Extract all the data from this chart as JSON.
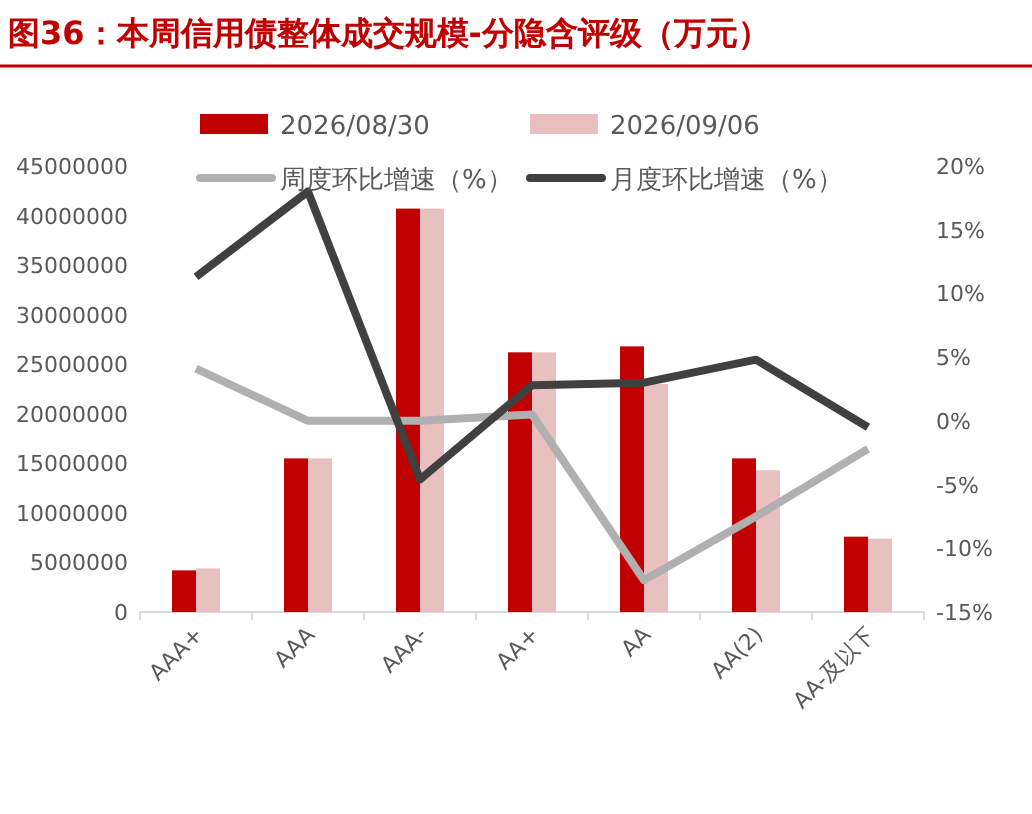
{
  "chart_data": {
    "type": "bar",
    "title": "图36：本周信用债整体成交规模-分隐含评级（万元）",
    "categories": [
      "AAA+",
      "AAA",
      "AAA-",
      "AA+",
      "AA",
      "AA(2)",
      "AA-及以下"
    ],
    "series": [
      {
        "name": "2026/08/30",
        "color": "#c00000",
        "values": [
          4200000,
          15500000,
          40700000,
          26200000,
          26800000,
          15500000,
          7600000
        ]
      },
      {
        "name": "2026/09/06",
        "color": "#eabfbf",
        "values": [
          4400000,
          15500000,
          40700000,
          26200000,
          23000000,
          14300000,
          7400000
        ]
      },
      {
        "name": "周度环比增速（%）",
        "type": "line",
        "axis": "y2",
        "color": "#b0b0b0",
        "values": [
          4.1,
          0,
          0,
          0.5,
          -12.5,
          -7.5,
          -2.2
        ]
      },
      {
        "name": "月度环比增速（%）",
        "type": "line",
        "axis": "y2",
        "color": "#404040",
        "values": [
          11.3,
          18,
          -4.6,
          2.8,
          3,
          4.8,
          -0.5
        ]
      }
    ],
    "ylim": [
      0,
      45000000
    ],
    "yticks": [
      0,
      5000000,
      10000000,
      15000000,
      20000000,
      25000000,
      30000000,
      35000000,
      40000000,
      45000000
    ],
    "y2lim": [
      -15,
      20
    ],
    "y2ticks": [
      {
        "value": -15,
        "label": "-15%"
      },
      {
        "value": -10,
        "label": "-10%"
      },
      {
        "value": -5,
        "label": "-5%"
      },
      {
        "value": 0,
        "label": "0%"
      },
      {
        "value": 5,
        "label": "5%"
      },
      {
        "value": 10,
        "label": "10%"
      },
      {
        "value": 15,
        "label": "15%"
      },
      {
        "value": 20,
        "label": "20%"
      }
    ],
    "legend": "top",
    "grid": false,
    "marker": "none",
    "line_style": "solid"
  }
}
